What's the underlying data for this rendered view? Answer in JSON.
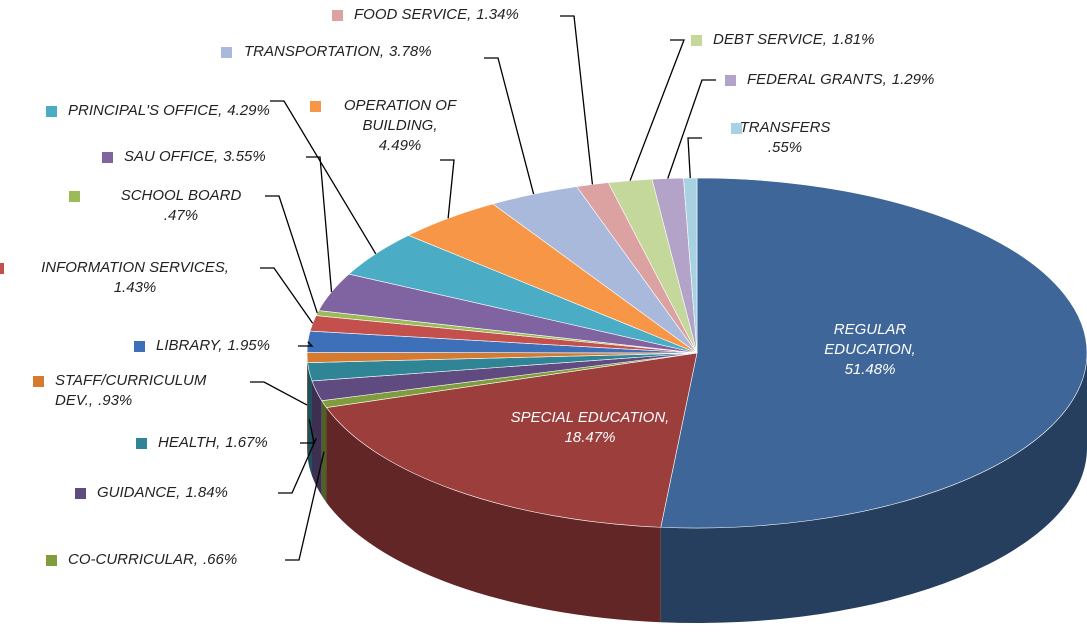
{
  "chart_data": {
    "type": "pie3d",
    "categories": [
      "REGULAR EDUCATION,",
      "SPECIAL EDUCATION,",
      "CO-CURRICULAR,",
      "GUIDANCE,",
      "HEALTH,",
      "STAFF/CURRICULUM DEV.,",
      "LIBRARY,",
      "INFORMATION SERVICES,",
      "SCHOOL BOARD",
      "SAU OFFICE,",
      "PRINCIPAL'S OFFICE,",
      "OPERATION OF BUILDING,",
      "TRANSPORTATION,",
      "FOOD SERVICE,",
      "DEBT SERVICE,",
      "FEDERAL GRANTS,",
      "TRANSFERS"
    ],
    "values": [
      51.48,
      18.47,
      0.66,
      1.84,
      1.67,
      0.93,
      1.95,
      1.43,
      0.47,
      3.55,
      4.29,
      4.49,
      3.78,
      1.34,
      1.81,
      1.29,
      0.55
    ],
    "value_labels": [
      "51.48%",
      "18.47%",
      ".66%",
      "1.84%",
      "1.67%",
      ".93%",
      "1.95%",
      "1.43%",
      ".47%",
      "3.55%",
      "4.29%",
      "4.49%",
      "3.78%",
      "1.34%",
      "1.81%",
      "1.29%",
      ".55%"
    ],
    "colors": [
      "#3f6699",
      "#9c3e3b",
      "#7f9d3c",
      "#604b80",
      "#2f8496",
      "#d67a2f",
      "#3d70b8",
      "#c4504d",
      "#9bbb59",
      "#8064a2",
      "#4bacc6",
      "#f79646",
      "#a8b9db",
      "#dca2a2",
      "#c5d89c",
      "#b4a3c8",
      "#a8d2e2"
    ]
  }
}
